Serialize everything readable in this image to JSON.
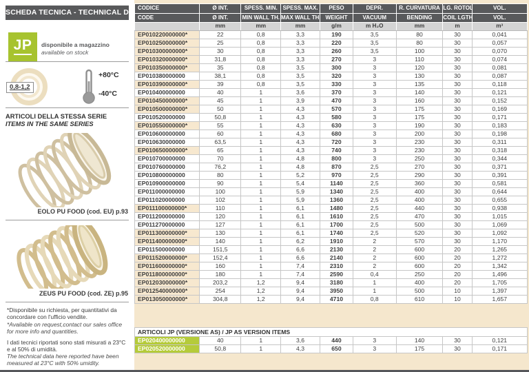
{
  "sidebar": {
    "title": "SCHEDA TECNICA - TECHNICAL DATA",
    "logo_text": "JP",
    "availability_it": "disponibile a magazzino",
    "availability_en": "available on stock",
    "diameter_ratio_badge": "0,8-1,2",
    "temp_max": "+80°C",
    "temp_min": "-40°C",
    "same_series_it": "ARTICOLI DELLA STESSA SERIE",
    "same_series_en": "ITEMS IN THE SAME SERIES",
    "related_items": [
      {
        "label": "EOLO PU FOOD (cod. EU) p.93"
      },
      {
        "label": "ZEUS PU FOOD (cod. ZE) p.95"
      }
    ],
    "footnote_request_it": "*Disponibile su richiesta, per quantitativi da concordare con l'ufficio vendite.",
    "footnote_request_en": "*Available on request,contact our sales office for more info and quantities.",
    "footnote_data_it": "I dati tecnici riportati sono stati misurati a 23°C e al 50% di umidità.",
    "footnote_data_en": "The technical data here reported have been measured at 23°C with 50% umidity."
  },
  "table": {
    "columns": [
      {
        "it": "CODICE",
        "en": "CODE",
        "unit": ""
      },
      {
        "it": "Ø INT.",
        "en": "Ø INT.",
        "unit": "mm"
      },
      {
        "it": "SPESS. MIN.",
        "en": "MIN WALL TH.",
        "unit": "mm"
      },
      {
        "it": "SPESS. MAX.",
        "en": "MAX WALL TH.",
        "unit": "mm"
      },
      {
        "it": "PESO",
        "en": "WEIGHT",
        "unit": "g/m"
      },
      {
        "it": "DEPR.",
        "en": "VACUUM",
        "unit": "m H₂O"
      },
      {
        "it": "R. CURVATURA",
        "en": "BENDING",
        "unit": "mm"
      },
      {
        "it": "LG. ROTOLO",
        "en": "COIL LGTH.",
        "unit": "m"
      },
      {
        "it": "VOL.",
        "en": "VOL.",
        "unit": "m³"
      }
    ],
    "rows": [
      {
        "code": "EP010220000000*",
        "starred": true,
        "values": [
          "22",
          "0,8",
          "3,3",
          "190",
          "3,5",
          "80",
          "30",
          "0,041"
        ]
      },
      {
        "code": "EP010250000000*",
        "starred": true,
        "values": [
          "25",
          "0,8",
          "3,3",
          "220",
          "3,5",
          "80",
          "30",
          "0,057"
        ]
      },
      {
        "code": "EP010300000000*",
        "starred": true,
        "values": [
          "30",
          "0,8",
          "3,3",
          "260",
          "3,5",
          "100",
          "30",
          "0,070"
        ]
      },
      {
        "code": "EP010320000000*",
        "starred": true,
        "values": [
          "31,8",
          "0,8",
          "3,3",
          "270",
          "3",
          "110",
          "30",
          "0,074"
        ]
      },
      {
        "code": "EP010350000000*",
        "starred": true,
        "values": [
          "35",
          "0,8",
          "3,5",
          "300",
          "3",
          "120",
          "30",
          "0,081"
        ]
      },
      {
        "code": "EP010380000000",
        "starred": false,
        "values": [
          "38,1",
          "0,8",
          "3,5",
          "320",
          "3",
          "130",
          "30",
          "0,087"
        ]
      },
      {
        "code": "EP010390000000*",
        "starred": true,
        "values": [
          "39",
          "0,8",
          "3,5",
          "330",
          "3",
          "135",
          "30",
          "0,118"
        ]
      },
      {
        "code": "EP010400000000",
        "starred": false,
        "values": [
          "40",
          "1",
          "3,6",
          "370",
          "3",
          "140",
          "30",
          "0,121"
        ]
      },
      {
        "code": "EP010450000000*",
        "starred": true,
        "values": [
          "45",
          "1",
          "3,9",
          "470",
          "3",
          "160",
          "30",
          "0,152"
        ]
      },
      {
        "code": "EP010500000000*",
        "starred": true,
        "values": [
          "50",
          "1",
          "4,3",
          "570",
          "3",
          "175",
          "30",
          "0,169"
        ]
      },
      {
        "code": "EP010520000000",
        "starred": false,
        "values": [
          "50,8",
          "1",
          "4,3",
          "580",
          "3",
          "175",
          "30",
          "0,171"
        ]
      },
      {
        "code": "EP010550000000*",
        "starred": true,
        "values": [
          "55",
          "1",
          "4,3",
          "630",
          "3",
          "190",
          "30",
          "0,183"
        ]
      },
      {
        "code": "EP010600000000",
        "starred": false,
        "values": [
          "60",
          "1",
          "4,3",
          "680",
          "3",
          "200",
          "30",
          "0,198"
        ]
      },
      {
        "code": "EP010630000000",
        "starred": false,
        "values": [
          "63,5",
          "1",
          "4,3",
          "720",
          "3",
          "230",
          "30",
          "0,311"
        ]
      },
      {
        "code": "EP010650000000*",
        "starred": true,
        "values": [
          "65",
          "1",
          "4,3",
          "740",
          "3",
          "230",
          "30",
          "0,318"
        ]
      },
      {
        "code": "EP010700000000",
        "starred": false,
        "values": [
          "70",
          "1",
          "4,8",
          "800",
          "3",
          "250",
          "30",
          "0,344"
        ]
      },
      {
        "code": "EP010760000000",
        "starred": false,
        "values": [
          "76,2",
          "1",
          "4,8",
          "870",
          "2,5",
          "270",
          "30",
          "0,371"
        ]
      },
      {
        "code": "EP010800000000",
        "starred": false,
        "values": [
          "80",
          "1",
          "5,2",
          "970",
          "2,5",
          "290",
          "30",
          "0,391"
        ]
      },
      {
        "code": "EP010900000000",
        "starred": false,
        "values": [
          "90",
          "1",
          "5,4",
          "1140",
          "2,5",
          "360",
          "30",
          "0,581"
        ]
      },
      {
        "code": "EP011000000000",
        "starred": false,
        "values": [
          "100",
          "1",
          "5,9",
          "1340",
          "2,5",
          "400",
          "30",
          "0,644"
        ]
      },
      {
        "code": "EP011020000000",
        "starred": false,
        "values": [
          "102",
          "1",
          "5,9",
          "1360",
          "2,5",
          "400",
          "30",
          "0,655"
        ]
      },
      {
        "code": "EP011100000000*",
        "starred": true,
        "values": [
          "110",
          "1",
          "6,1",
          "1480",
          "2,5",
          "440",
          "30",
          "0,938"
        ]
      },
      {
        "code": "EP011200000000",
        "starred": false,
        "values": [
          "120",
          "1",
          "6,1",
          "1610",
          "2,5",
          "470",
          "30",
          "1,015"
        ]
      },
      {
        "code": "EP011270000000",
        "starred": false,
        "values": [
          "127",
          "1",
          "6,1",
          "1700",
          "2,5",
          "500",
          "30",
          "1,069"
        ]
      },
      {
        "code": "EP011300000000*",
        "starred": true,
        "values": [
          "130",
          "1",
          "6,1",
          "1740",
          "2,5",
          "520",
          "30",
          "1,092"
        ]
      },
      {
        "code": "EP011400000000*",
        "starred": true,
        "values": [
          "140",
          "1",
          "6,2",
          "1910",
          "2",
          "570",
          "30",
          "1,170"
        ]
      },
      {
        "code": "EP011500000000",
        "starred": false,
        "values": [
          "151,5",
          "1",
          "6,6",
          "2130",
          "2",
          "600",
          "20",
          "1,265"
        ]
      },
      {
        "code": "EP011520000000*",
        "starred": true,
        "values": [
          "152,4",
          "1",
          "6,6",
          "2140",
          "2",
          "600",
          "20",
          "1,272"
        ]
      },
      {
        "code": "EP011600000000*",
        "starred": true,
        "values": [
          "160",
          "1",
          "7,4",
          "2310",
          "2",
          "600",
          "20",
          "1,342"
        ]
      },
      {
        "code": "EP011800000000*",
        "starred": true,
        "values": [
          "180",
          "1",
          "7,4",
          "2590",
          "0,4",
          "250",
          "20",
          "1,496"
        ]
      },
      {
        "code": "EP012030000000*",
        "starred": true,
        "values": [
          "203,2",
          "1,2",
          "9,4",
          "3180",
          "1",
          "400",
          "20",
          "1,705"
        ]
      },
      {
        "code": "EP012540000000*",
        "starred": true,
        "values": [
          "254",
          "1,2",
          "9,4",
          "3950",
          "1",
          "500",
          "10",
          "1,397"
        ]
      },
      {
        "code": "EP013050000000*",
        "starred": true,
        "values": [
          "304,8",
          "1,2",
          "9,4",
          "4710",
          "0,8",
          "610",
          "10",
          "1,657"
        ]
      }
    ]
  },
  "as_section": {
    "title": "ARTICOLI JP (VERSIONE AS) / JP AS VERSION ITEMS",
    "rows": [
      {
        "code": "EP020400000000",
        "values": [
          "40",
          "1",
          "3,6",
          "440",
          "3",
          "140",
          "30",
          "0,121"
        ]
      },
      {
        "code": "EP020520000000",
        "values": [
          "50,8",
          "1",
          "4,3",
          "650",
          "3",
          "175",
          "30",
          "0,171"
        ]
      }
    ]
  },
  "colors": {
    "accent_green": "#a7c32f",
    "header_gray": "#58595b",
    "page_beige": "#f5e7cd",
    "starred_cell_beige": "#f7e8cf",
    "as_code_green": "#b5cb3a"
  }
}
